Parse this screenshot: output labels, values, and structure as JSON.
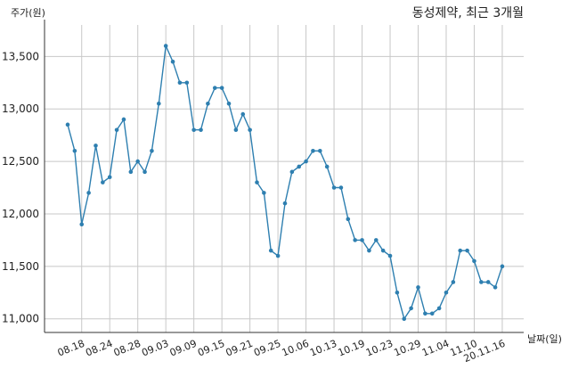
{
  "chart_data": {
    "type": "line",
    "title": "동성제약, 최근 3개월",
    "ylabel": "주가(원)",
    "xlabel": "날짜(일)",
    "ylim": [
      10870,
      13800
    ],
    "yticks": [
      11000,
      11500,
      12000,
      12500,
      13000,
      13500
    ],
    "ytick_labels": [
      "11,000",
      "11,500",
      "12,000",
      "12,500",
      "13,000",
      "13,500"
    ],
    "xtick_labels": [
      "08.18",
      "08.24",
      "08.28",
      "09.03",
      "09.09",
      "09.15",
      "09.21",
      "09.25",
      "10.06",
      "10.13",
      "10.19",
      "10.23",
      "10.29",
      "11.04",
      "11.10",
      "20.11.16"
    ],
    "xtick_index": [
      2,
      6,
      10,
      14,
      18,
      22,
      26,
      30,
      34,
      38,
      42,
      46,
      50,
      54,
      58,
      62
    ],
    "grid": true,
    "line_color": "#2e7fb0",
    "series": [
      {
        "values": [
          12850,
          12600,
          11900,
          12200,
          12650,
          12300,
          12350,
          12800,
          12900,
          12400,
          12500,
          12400,
          12600,
          13050,
          13600,
          13450,
          13250,
          13250,
          12800,
          12800,
          13050,
          13200,
          13200,
          13050,
          12800,
          12950,
          12800,
          12300,
          12200,
          11650,
          11600,
          12100,
          12400,
          12450,
          12500,
          12600,
          12600,
          12450,
          12250,
          12250,
          11950,
          11750,
          11750,
          11650,
          11750,
          11650,
          11600,
          11250,
          11000,
          11100,
          11300,
          11050,
          11050,
          11100,
          11250,
          11350,
          11650,
          11650,
          11550,
          11350,
          11350,
          11300,
          11500
        ]
      }
    ]
  }
}
